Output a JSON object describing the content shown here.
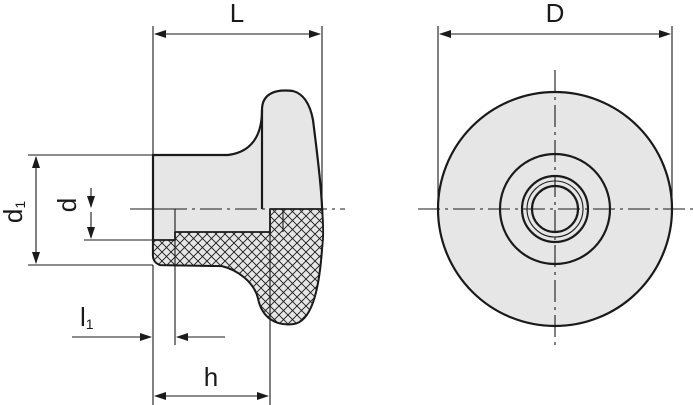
{
  "figure": {
    "type": "technical-drawing",
    "subject": "knob",
    "views": [
      "side-section",
      "front"
    ],
    "colors": {
      "fill": "#e6e6e6",
      "line": "#1a1a1a",
      "hatch": "#1a1a1a",
      "background": "#ffffff"
    }
  },
  "dimensions": {
    "L": "L",
    "D": "D",
    "d1_main": "d",
    "d1_sub": "1",
    "d": "d",
    "l1_main": "l",
    "l1_sub": "1",
    "h": "h"
  }
}
